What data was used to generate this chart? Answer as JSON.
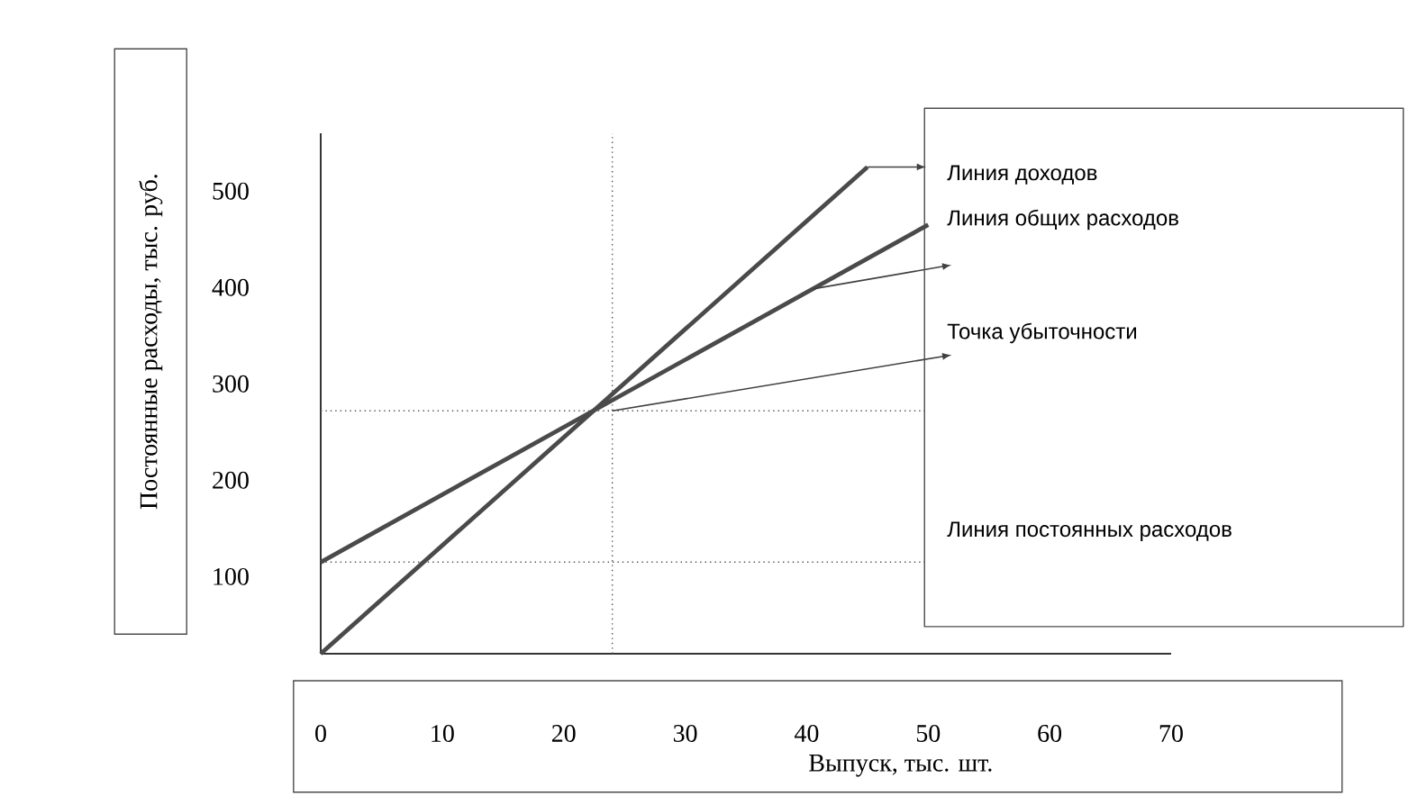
{
  "chart_data": {
    "type": "line",
    "ylabel": "Постоянные расходы, тыс. руб.",
    "xlabel": "Выпуск, тыс. шт.",
    "xlim": [
      0,
      70
    ],
    "ylim": [
      20,
      560
    ],
    "xticks": [
      0,
      10,
      20,
      30,
      40,
      50,
      60,
      70
    ],
    "yticks": [
      100,
      200,
      300,
      400,
      500
    ],
    "marker": "none",
    "line_style": "solid",
    "grid": false,
    "series": [
      {
        "name": "Линия доходов",
        "color": "#4a4a4a",
        "x": [
          0,
          45
        ],
        "values": [
          20,
          525
        ]
      },
      {
        "name": "Линия общих расходов",
        "color": "#4a4a4a",
        "x": [
          0,
          50
        ],
        "values": [
          115,
          465
        ]
      }
    ],
    "ref_lines": [
      {
        "axis": "y",
        "value": 115,
        "label": "Линия постоянных расходов",
        "line_style": "dotted",
        "color": "#555555"
      },
      {
        "axis": "y",
        "value": 272,
        "line_style": "dotted",
        "color": "#555555"
      },
      {
        "axis": "x",
        "value": 24,
        "line_style": "dotted",
        "color": "#555555"
      }
    ],
    "annotations": [
      {
        "text": "Точка убыточности",
        "x": 24,
        "y": 272
      }
    ]
  }
}
